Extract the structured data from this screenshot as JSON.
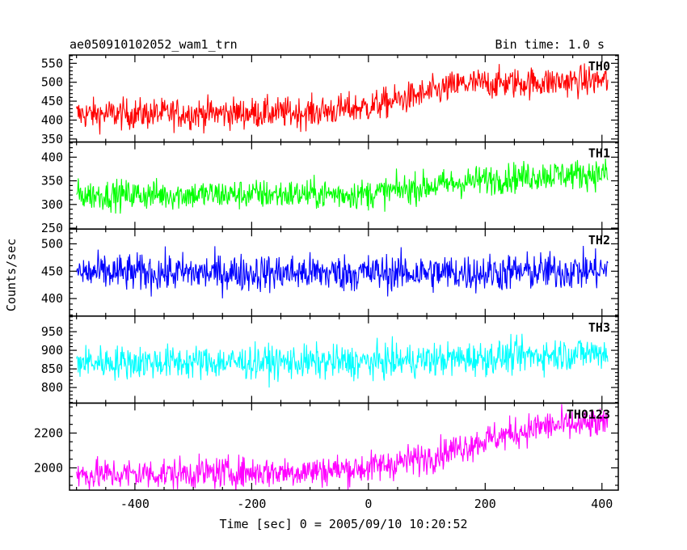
{
  "header": {
    "left": "ae050910102052_wam1_trn",
    "right": "Bin time: 1.0 s"
  },
  "chart_data": {
    "type": "line",
    "title": "ae050910102052_wam1_trn",
    "subtitle": "Bin time: 1.0 s",
    "xlabel": "Time [sec] 0 = 2005/09/10 10:20:52",
    "ylabel": "Counts/sec",
    "xlim": [
      -512,
      428
    ],
    "xticks": [
      -400,
      -200,
      0,
      200,
      400
    ],
    "x_range": [
      -500,
      410
    ],
    "bin_time": 1.0,
    "panels": [
      {
        "name": "TH0",
        "color": "#ff0000",
        "ylim": [
          342,
          572
        ],
        "yticks": [
          350,
          400,
          450,
          500,
          550
        ],
        "trend": [
          [
            -500,
            415
          ],
          [
            -100,
            420
          ],
          [
            0,
            435
          ],
          [
            100,
            470
          ],
          [
            160,
            495
          ],
          [
            300,
            500
          ],
          [
            410,
            505
          ]
        ],
        "noise": 45
      },
      {
        "name": "TH1",
        "color": "#00ff00",
        "ylim": [
          248,
          432
        ],
        "yticks": [
          250,
          300,
          350,
          400
        ],
        "trend": [
          [
            -500,
            320
          ],
          [
            0,
            322
          ],
          [
            100,
            338
          ],
          [
            200,
            352
          ],
          [
            300,
            362
          ],
          [
            410,
            365
          ]
        ],
        "noise": 35
      },
      {
        "name": "TH2",
        "color": "#0000ff",
        "ylim": [
          368,
          527
        ],
        "yticks": [
          400,
          450,
          500
        ],
        "trend": [
          [
            -500,
            447
          ],
          [
            200,
            447
          ],
          [
            410,
            452
          ]
        ],
        "noise": 38
      },
      {
        "name": "TH3",
        "color": "#00ffff",
        "ylim": [
          758,
          992
        ],
        "yticks": [
          800,
          850,
          900,
          950
        ],
        "trend": [
          [
            -500,
            868
          ],
          [
            0,
            868
          ],
          [
            200,
            880
          ],
          [
            410,
            895
          ]
        ],
        "noise": 50
      },
      {
        "name": "TH0123",
        "color": "#ff00ff",
        "ylim": [
          1872,
          2372
        ],
        "yticks": [
          2000,
          2200
        ],
        "trend": [
          [
            -500,
            1960
          ],
          [
            -100,
            1980
          ],
          [
            0,
            2000
          ],
          [
            100,
            2060
          ],
          [
            200,
            2160
          ],
          [
            300,
            2240
          ],
          [
            410,
            2250
          ]
        ],
        "noise": 100
      }
    ]
  }
}
